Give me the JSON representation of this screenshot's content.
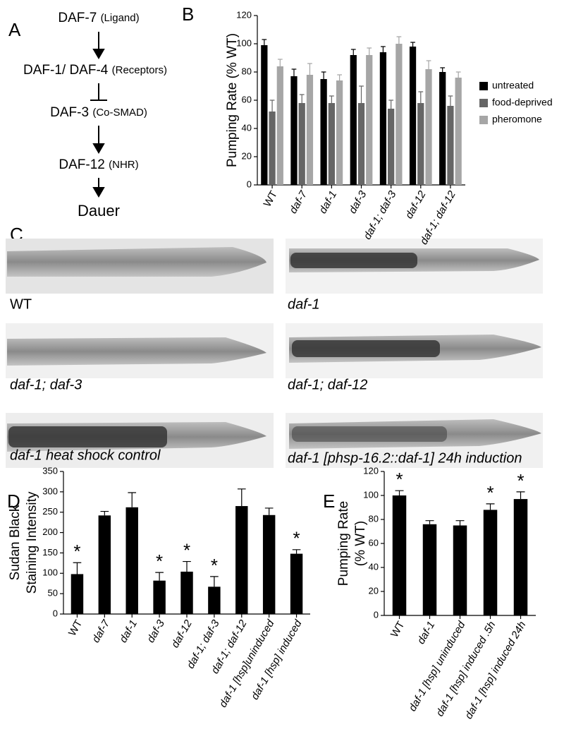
{
  "pathway": {
    "panel": "A",
    "nodes": [
      {
        "name": "DAF-7",
        "note": "(Ligand)"
      },
      {
        "name": "DAF-1/ DAF-4",
        "note": "(Receptors)"
      },
      {
        "name": "DAF-3",
        "note": "(Co-SMAD)"
      },
      {
        "name": "DAF-12",
        "note": "(NHR)"
      },
      {
        "name": "Dauer"
      }
    ]
  },
  "micrographs": {
    "panel": "C",
    "captions": [
      "WT",
      "daf-1",
      "daf-1; daf-3",
      "daf-1; daf-12",
      "daf-1 heat shock control",
      "daf-1 [phsp-16.2::daf-1] 24h induction"
    ]
  },
  "chart_data": [
    {
      "type": "bar",
      "panel": "B",
      "ylabel": [
        "Pumping Rate (% WT)"
      ],
      "categories": [
        "WT",
        "daf-7",
        "daf-1",
        "daf-3",
        "daf-1; daf-3",
        "daf-12",
        "daf-1; daf-12"
      ],
      "series": [
        {
          "name": "untreated",
          "color": "#000000",
          "values": [
            99,
            77,
            75,
            92,
            94,
            98,
            80
          ],
          "errors": [
            4,
            5,
            5,
            4,
            4,
            3,
            3
          ]
        },
        {
          "name": "food-deprived",
          "color": "#666666",
          "values": [
            52,
            58,
            58,
            58,
            54,
            58,
            56
          ],
          "errors": [
            8,
            6,
            5,
            12,
            6,
            8,
            7
          ]
        },
        {
          "name": "pheromone",
          "color": "#a6a6a6",
          "values": [
            84,
            78,
            74,
            92,
            100,
            82,
            76
          ],
          "errors": [
            5,
            8,
            4,
            5,
            5,
            6,
            4
          ]
        }
      ],
      "ylim": [
        0,
        120
      ],
      "yticks": [
        0,
        20,
        40,
        60,
        80,
        100,
        120
      ],
      "legend": "right"
    },
    {
      "type": "bar",
      "panel": "D",
      "ylabel": [
        "Sudan Black",
        "Staining Intensity"
      ],
      "categories": [
        "WT",
        "daf-7",
        "daf-1",
        "daf-3",
        "daf-12",
        "daf-1; daf-3",
        "daf-1; daf-12",
        "daf-1 [hsp]uninduced",
        "daf-1 [hsp] induced"
      ],
      "values": [
        98,
        242,
        262,
        82,
        104,
        67,
        265,
        243,
        148
      ],
      "errors": [
        28,
        10,
        36,
        20,
        25,
        25,
        42,
        17,
        10
      ],
      "annotations": [
        "*",
        null,
        null,
        "*",
        "*",
        "*",
        null,
        null,
        "*"
      ],
      "color": "#000000",
      "ylim": [
        0,
        350
      ],
      "yticks": [
        0,
        50,
        100,
        150,
        200,
        250,
        300,
        350
      ]
    },
    {
      "type": "bar",
      "panel": "E",
      "ylabel": [
        "Pumping Rate",
        "(% WT)"
      ],
      "categories": [
        "WT",
        "daf-1",
        "daf-1 [hsp] uninduced",
        "daf-1 [hsp] induced .5h",
        "daf-1 [hsp] induced 24h"
      ],
      "values": [
        100,
        76,
        75,
        88,
        97
      ],
      "errors": [
        4,
        3,
        4,
        5,
        6
      ],
      "annotations": [
        "*",
        null,
        null,
        "*",
        "*"
      ],
      "color": "#000000",
      "ylim": [
        0,
        120
      ],
      "yticks": [
        0,
        20,
        40,
        60,
        80,
        100,
        120
      ]
    }
  ]
}
